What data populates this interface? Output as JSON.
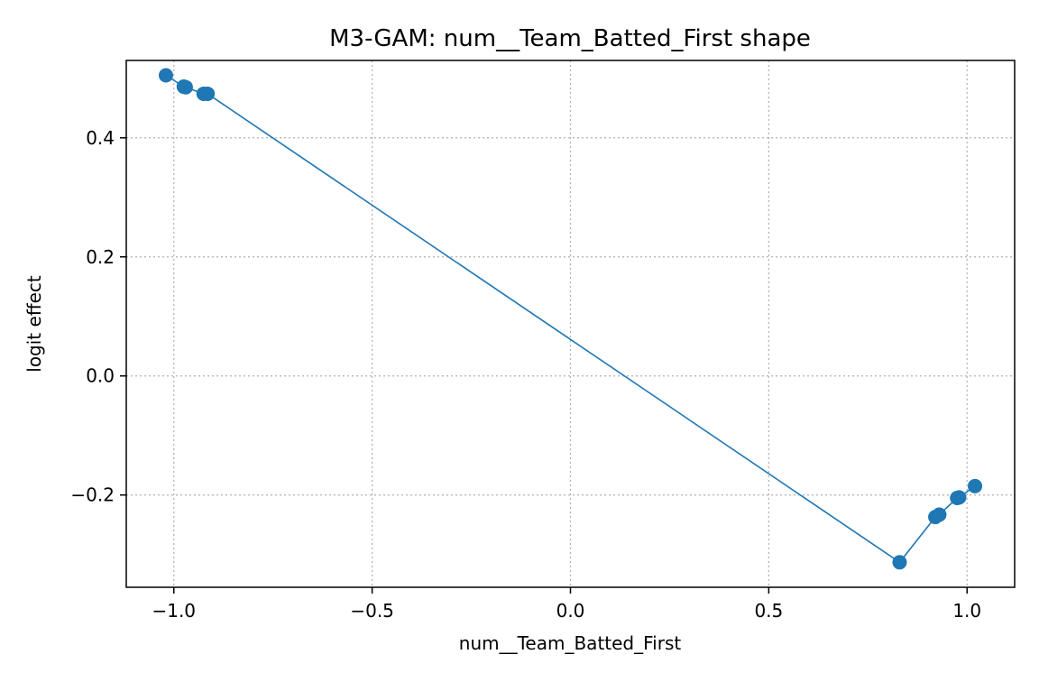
{
  "chart_data": {
    "type": "line",
    "title": "M3-GAM: num__Team_Batted_First shape",
    "xlabel": "num__Team_Batted_First",
    "ylabel": "logit effect",
    "xlim": [
      -1.12,
      1.12
    ],
    "ylim": [
      -0.355,
      0.53
    ],
    "xticks": [
      -1.0,
      -0.5,
      0.0,
      0.5,
      1.0
    ],
    "xtick_labels": [
      "−1.0",
      "−0.5",
      "0.0",
      "0.5",
      "1.0"
    ],
    "yticks": [
      -0.2,
      0.0,
      0.2,
      0.4
    ],
    "ytick_labels": [
      "−0.2",
      "0.0",
      "0.2",
      "0.4"
    ],
    "grid": true,
    "color": "#1f77b4",
    "series": [
      {
        "x": [
          -1.02,
          -0.975,
          -0.97,
          -0.925,
          -0.915,
          0.83,
          0.92,
          0.93,
          0.975,
          0.98,
          1.02
        ],
        "y": [
          0.505,
          0.486,
          0.485,
          0.474,
          0.474,
          -0.313,
          -0.237,
          -0.233,
          -0.205,
          -0.204,
          -0.185
        ]
      }
    ]
  }
}
